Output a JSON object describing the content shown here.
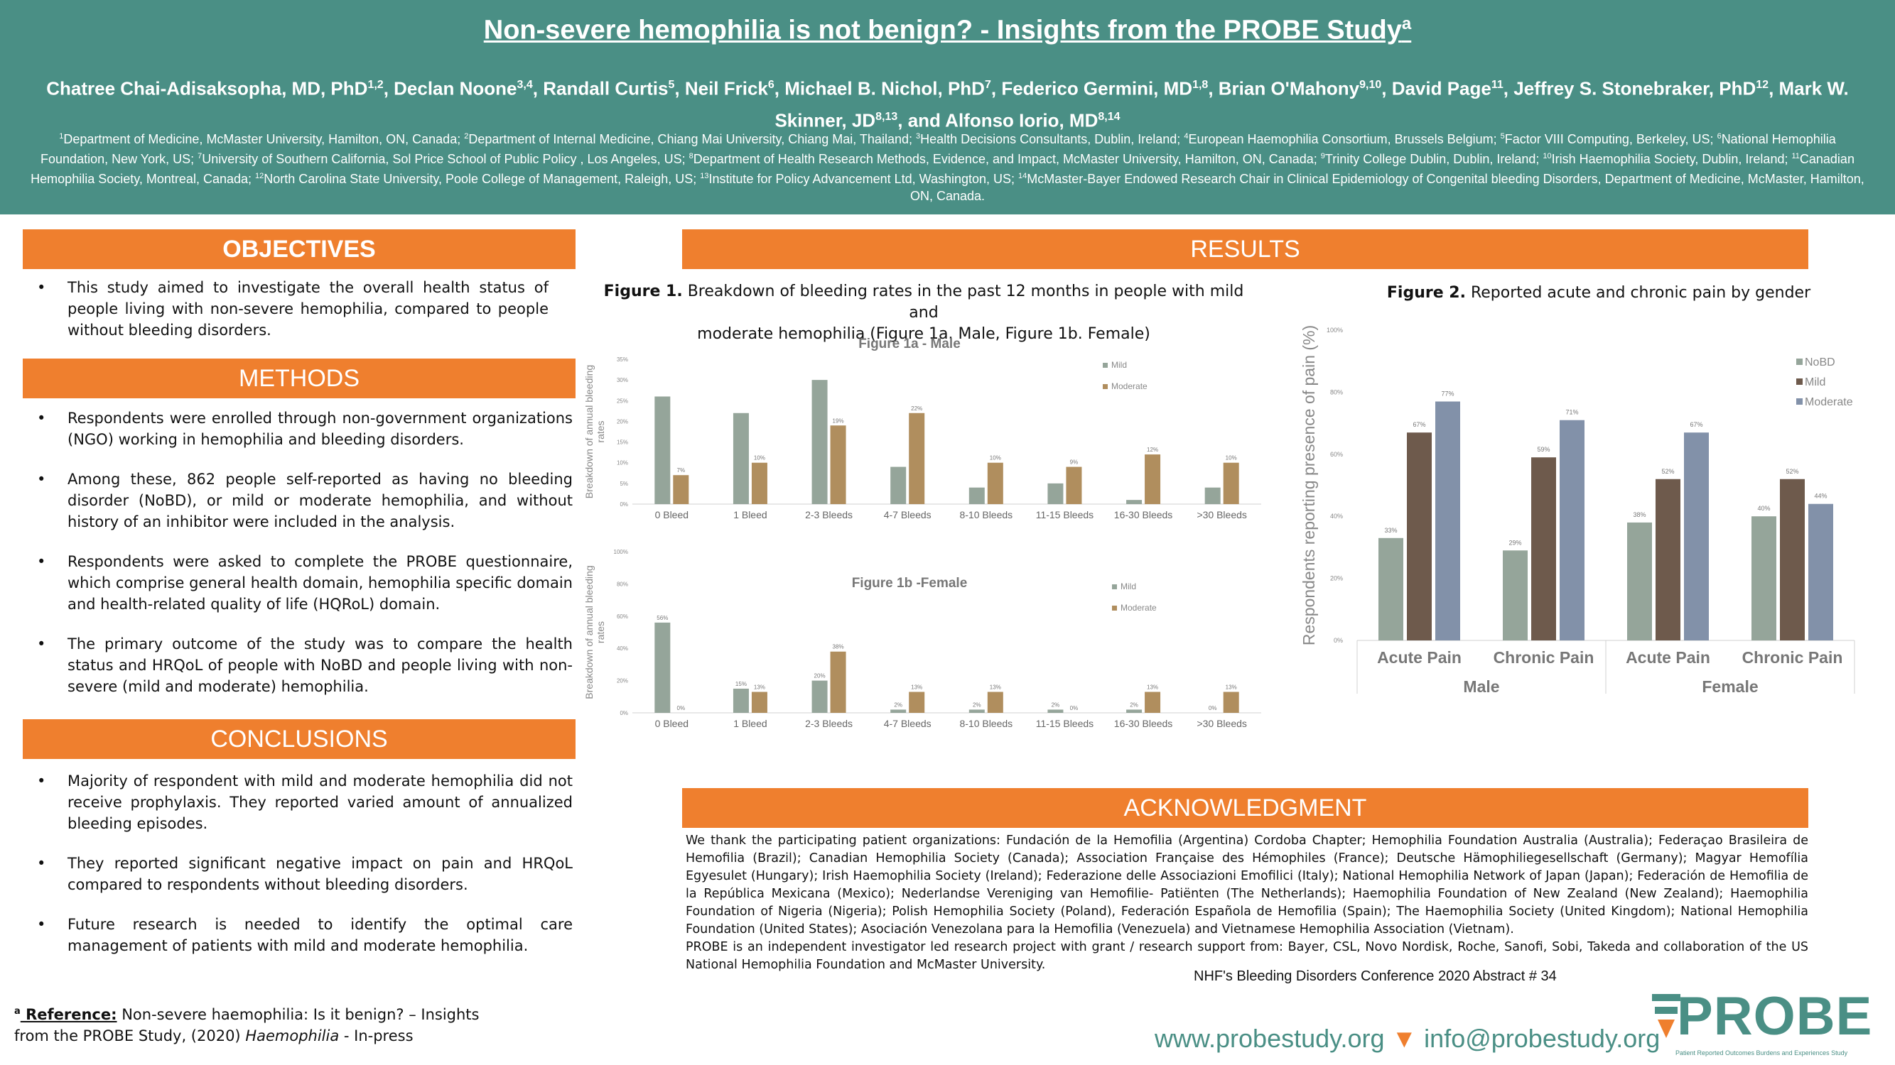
{
  "header": {
    "title": "Non-severe hemophilia is not benign? - Insights from the PROBE Study",
    "title_sup": "a",
    "authors": [
      {
        "name": "Chatree Chai-Adisaksopha, MD, PhD",
        "sup": "1,2"
      },
      {
        "name": "Declan Noone",
        "sup": "3,4"
      },
      {
        "name": "Randall Curtis",
        "sup": "5"
      },
      {
        "name": "Neil Frick",
        "sup": "6"
      },
      {
        "name": "Michael B. Nichol, PhD",
        "sup": "7"
      },
      {
        "name": "Federico Germini, MD",
        "sup": "1,8"
      },
      {
        "name": "Brian O'Mahony",
        "sup": "9,10"
      },
      {
        "name": "David Page",
        "sup": "11"
      },
      {
        "name": "Jeffrey S. Stonebraker, PhD",
        "sup": "12"
      },
      {
        "name": "Mark W. Skinner, JD",
        "sup": "8,13"
      },
      {
        "name": "and Alfonso Iorio, MD",
        "sup": "8,14"
      }
    ],
    "affiliations": [
      {
        "sup": "1",
        "text": "Department of Medicine, McMaster University, Hamilton, ON, Canada; "
      },
      {
        "sup": "2",
        "text": "Department of Internal Medicine, Chiang Mai University, Chiang Mai, Thailand; "
      },
      {
        "sup": "3",
        "text": "Health Decisions Consultants, Dublin, Ireland; "
      },
      {
        "sup": "4",
        "text": "European Haemophilia Consortium, Brussels Belgium;  "
      },
      {
        "sup": "5",
        "text": "Factor VIII Computing, Berkeley, US; "
      },
      {
        "sup": "6",
        "text": "National Hemophilia Foundation, New York, US; "
      },
      {
        "sup": "7",
        "text": "University of Southern California, Sol Price School of Public Policy , Los Angeles, US; "
      },
      {
        "sup": "8",
        "text": "Department of Health Research Methods, Evidence, and Impact, McMaster University, Hamilton, ON, Canada; "
      },
      {
        "sup": "9",
        "text": "Trinity College Dublin, Dublin, Ireland; "
      },
      {
        "sup": "10",
        "text": "Irish Haemophilia Society, Dublin, Ireland; "
      },
      {
        "sup": "11",
        "text": "Canadian Hemophilia Society, Montreal, Canada; "
      },
      {
        "sup": "12",
        "text": "North Carolina State University, Poole College of Management, Raleigh, US; "
      },
      {
        "sup": "13",
        "text": "Institute for Policy Advancement Ltd, Washington, US; "
      },
      {
        "sup": "14",
        "text": "McMaster-Bayer Endowed Research Chair in Clinical Epidemiology of Congenital bleeding Disorders, Department of Medicine, McMaster, Hamilton, ON, Canada."
      }
    ]
  },
  "sections": {
    "objectives": "OBJECTIVES",
    "methods": "METHODS",
    "conclusions": "CONCLUSIONS",
    "results": "RESULTS",
    "acknowledgment": "ACKNOWLEDGMENT"
  },
  "objectives_items": [
    "This study aimed to investigate the overall health status of people living with non-severe hemophilia, compared to people without bleeding disorders."
  ],
  "methods_items": [
    "Respondents were enrolled through non-government organizations (NGO) working in hemophilia and bleeding disorders.",
    "Among these, 862 people self-reported as having no bleeding disorder (NoBD), or mild or moderate hemophilia,  and without history of an inhibitor were included in the analysis.",
    "Respondents were asked to complete the PROBE questionnaire, which comprise general health domain, hemophilia specific domain and health-related quality of life (HQRoL) domain.",
    "The primary outcome of the study was to compare the health status and HRQoL of people with NoBD and people living with non-severe (mild and moderate) hemophilia."
  ],
  "conclusions_items": [
    "Majority of respondent with mild and moderate hemophilia did not receive prophylaxis. They reported varied amount of annualized bleeding episodes.",
    "They reported significant negative impact on pain and HRQoL compared to respondents without bleeding disorders.",
    " Future research is needed to identify the optimal care management of  patients with mild and moderate hemophilia."
  ],
  "figure1": {
    "caption_bold": "Figure 1.",
    "caption_line1": " Breakdown of bleeding rates in the past 12 months in people with mild and",
    "caption_line2": "moderate hemophilia (Figure 1a. Male, Figure 1b. Female)"
  },
  "figure2": {
    "caption_bold": "Figure 2.",
    "caption": " Reported acute and chronic pain by gender"
  },
  "chart_data": [
    {
      "type": "bar",
      "title": "Figure 1a - Male",
      "ylabel": "Breakdown of annual bleeding rates",
      "categories": [
        "0 Bleed",
        "1 Bleed",
        "2-3 Bleeds",
        "4-7 Bleeds",
        "8-10 Bleeds",
        "11-15 Bleeds",
        "16-30 Bleeds",
        ">30 Bleeds"
      ],
      "series": [
        {
          "name": "Mild",
          "values": [
            26,
            22,
            30,
            9,
            4,
            5,
            1,
            4
          ]
        },
        {
          "name": "Moderate",
          "values": [
            7,
            10,
            19,
            22,
            10,
            9,
            12,
            10
          ]
        }
      ],
      "data_labels": {
        "Moderate": [
          "7%",
          "10%",
          "19%",
          "22%",
          "10%",
          "9%",
          "12%",
          "10%"
        ]
      },
      "yticks": [
        "0%",
        "5%",
        "10%",
        "15%",
        "20%",
        "25%",
        "30%",
        "35%"
      ],
      "ylim": [
        0,
        35
      ],
      "legend": "top-right",
      "colors": {
        "Mild": "#95a59a",
        "Moderate": "#b08e5e"
      }
    },
    {
      "type": "bar",
      "title": "Figure 1b -Female",
      "ylabel": "Breakdown of annual bleeding rates",
      "categories": [
        "0 Bleed",
        "1 Bleed",
        "2-3 Bleeds",
        "4-7 Bleeds",
        "8-10 Bleeds",
        "11-15 Bleeds",
        "16-30 Bleeds",
        ">30 Bleeds"
      ],
      "series": [
        {
          "name": "Mild",
          "values": [
            56,
            15,
            20,
            2,
            2,
            2,
            2,
            0
          ]
        },
        {
          "name": "Moderate",
          "values": [
            0,
            13,
            38,
            13,
            13,
            0,
            13,
            13
          ]
        }
      ],
      "data_labels": {
        "Mild": [
          "56%",
          "15%",
          "20%",
          "2%",
          "2%",
          "2%",
          "2%",
          "0%"
        ],
        "Moderate": [
          "0%",
          "13%",
          "38%",
          "13%",
          "13%",
          "0%",
          "13%",
          "13%"
        ]
      },
      "yticks": [
        "0%",
        "20%",
        "40%",
        "60%",
        "80%",
        "100%"
      ],
      "ylim": [
        0,
        100
      ],
      "legend": "top-right",
      "colors": {
        "Mild": "#95a59a",
        "Moderate": "#b08e5e"
      }
    },
    {
      "type": "bar",
      "title": "",
      "ylabel": "Respondents reporting  presence of pain (%)",
      "categories": [
        "Acute  Pain",
        "Chronic Pain",
        "Acute  Pain",
        "Chronic Pain"
      ],
      "groups": [
        "Male",
        "Female"
      ],
      "series": [
        {
          "name": "NoBD",
          "values": [
            33,
            29,
            38,
            40
          ]
        },
        {
          "name": "Mild",
          "values": [
            67,
            59,
            52,
            52
          ]
        },
        {
          "name": "Moderate",
          "values": [
            77,
            71,
            67,
            44
          ]
        }
      ],
      "yticks": [
        "0%",
        "20%",
        "40%",
        "60%",
        "80%",
        "100%"
      ],
      "ylim": [
        0,
        100
      ],
      "legend": "top-right",
      "colors": {
        "NoBD": "#95a59a",
        "Mild": "#6e5a4c",
        "Moderate": "#8291a9"
      }
    }
  ],
  "acknowledgment": {
    "text1": "We thank the participating patient organizations: Fundación de la Hemofilia (Argentina) Cordoba Chapter; Hemophilia Foundation Australia (Australia); Federaçao Brasileira de Hemofilia (Brazil); Canadian Hemophilia Society (Canada); Association Française des Hémophiles (France); Deutsche Hämophiliegesellschaft (Germany); Magyar Hemofília Egyesulet (Hungary); Irish Haemophilia Society (Ireland); Federazione delle Associazioni Emofilici (Italy); National Hemophilia Network of Japan (Japan); Federación de Hemofilia de la República Mexicana (Mexico); Nederlandse Vereniging van Hemofilie- Patiënten (The Netherlands); Haemophilia Foundation of New Zealand (New Zealand); Haemophilia Foundation of Nigeria (Nigeria); Polish Hemophilia Society (Poland), Federación Española de Hemofilia (Spain); The Haemophilia Society (United Kingdom); National Hemophilia Foundation (United States); Asociación Venezolana para la Hemofilia (Venezuela) and Vietnamese Hemophilia Association (Vietnam).",
    "text2": "PROBE is an independent investigator led research project with grant / research support from: Bayer, CSL, Novo Nordisk, Roche, Sanofi, Sobi, Takeda and collaboration of the US National Hemophilia Foundation and McMaster University."
  },
  "reference": {
    "sup": "a",
    "label": " Reference:",
    "text": " Non-severe haemophilia: Is it benign? – Insights from the PROBE Study, (2020) ",
    "journal": "Haemophilia",
    "suffix": " - In-press"
  },
  "footer": {
    "conference": "NHF's Bleeding Disorders Conference 2020 Abstract # 34",
    "website": "www.probestudy.org",
    "separator": "▼",
    "email": "info@probestudy.org",
    "logo_text": "PROBE",
    "logo_sub": "Patient Reported Outcomes Burdens and Experiences Study"
  }
}
